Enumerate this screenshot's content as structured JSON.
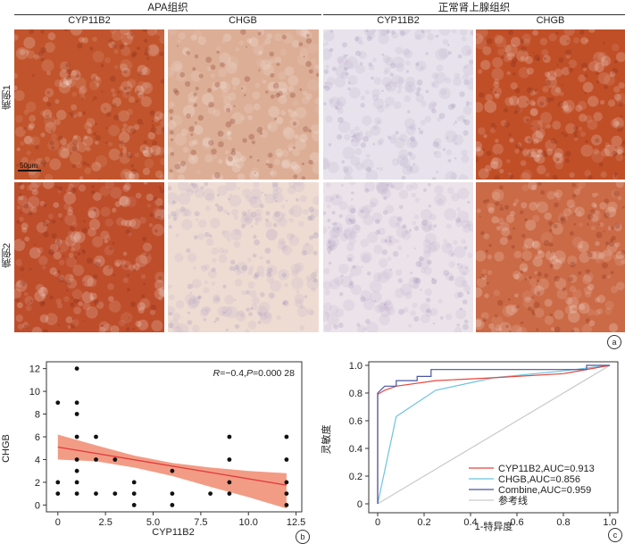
{
  "panel_a": {
    "group_headers": [
      "APA组织",
      "正常肾上腺组织"
    ],
    "stain_labels": [
      "CYP11B2",
      "CHGB",
      "CYP11B2",
      "CHGB"
    ],
    "row_labels": [
      "病例1",
      "病例2"
    ],
    "scale_bar": "50μm",
    "panel_label": "a",
    "tile_colors": [
      "#c1542c",
      "#dcae96",
      "#e7e2eb",
      "#c04f28",
      "#be4e2b",
      "#eedcd2",
      "#ebe3e9",
      "#cb6a46"
    ]
  },
  "panel_b": {
    "annotation": {
      "r_label": "R",
      "r_text": "=−0.4,",
      "p_label": "P",
      "p_text": "=0.000 28"
    },
    "panel_label": "b",
    "chart_data": {
      "type": "scatter",
      "xlabel": "CYP11B2",
      "ylabel": "CHGB",
      "xlim": [
        -0.6,
        12.8
      ],
      "ylim": [
        -0.6,
        12.6
      ],
      "xticks": [
        0,
        2.5,
        5.0,
        7.5,
        10.0,
        12.5
      ],
      "xtick_labels": [
        "0",
        "2.5",
        "5.0",
        "7.5",
        "10.0",
        "12.5"
      ],
      "yticks": [
        0,
        2,
        4,
        6,
        8,
        10,
        12
      ],
      "points": [
        [
          0,
          1
        ],
        [
          0,
          2
        ],
        [
          0,
          9
        ],
        [
          1,
          1
        ],
        [
          1,
          2
        ],
        [
          1,
          3
        ],
        [
          1,
          4
        ],
        [
          1,
          6
        ],
        [
          1,
          8
        ],
        [
          1,
          9
        ],
        [
          1,
          12
        ],
        [
          2,
          1
        ],
        [
          2,
          4
        ],
        [
          2,
          6
        ],
        [
          3,
          1
        ],
        [
          3,
          4
        ],
        [
          4,
          0
        ],
        [
          4,
          1
        ],
        [
          4,
          2
        ],
        [
          6,
          0
        ],
        [
          6,
          1
        ],
        [
          6,
          3
        ],
        [
          8,
          1
        ],
        [
          9,
          1
        ],
        [
          9,
          2
        ],
        [
          9,
          4
        ],
        [
          9,
          6
        ],
        [
          12,
          0
        ],
        [
          12,
          1
        ],
        [
          12,
          2
        ],
        [
          12,
          4
        ],
        [
          12,
          6
        ]
      ],
      "fit": {
        "x": [
          0,
          12
        ],
        "y": [
          5.1,
          1.75
        ]
      },
      "band_upper": [
        [
          0,
          6.2
        ],
        [
          2,
          5.25
        ],
        [
          4,
          4.35
        ],
        [
          6,
          3.7
        ],
        [
          8,
          3.3
        ],
        [
          10,
          3.0
        ],
        [
          12,
          2.8
        ]
      ],
      "band_lower": [
        [
          0,
          4.0
        ],
        [
          2,
          3.85
        ],
        [
          4,
          3.3
        ],
        [
          6,
          2.55
        ],
        [
          8,
          1.6
        ],
        [
          10,
          0.7
        ],
        [
          12,
          -0.3
        ]
      ],
      "colors": {
        "fit": "#e2393c",
        "band": "#f08b70",
        "points": "#111111"
      }
    }
  },
  "panel_c": {
    "panel_label": "c",
    "chart_data": {
      "type": "line",
      "xlabel": "1-特异度",
      "ylabel": "灵敏度",
      "xlim": [
        0,
        1
      ],
      "ylim": [
        0,
        1
      ],
      "xticks": [
        0,
        0.2,
        0.4,
        0.6,
        0.8,
        1.0
      ],
      "yticks": [
        0,
        0.2,
        0.4,
        0.6,
        0.8,
        1.0
      ],
      "tick_labels": [
        "0",
        "0.2",
        "0.4",
        "0.6",
        "0.8",
        "1.0"
      ],
      "series": [
        {
          "name": "CYP11B2,AUC=0.913",
          "color": "#e8453c",
          "x": [
            0,
            0,
            0.03,
            0.08,
            0.25,
            0.5,
            0.8,
            1.0
          ],
          "y": [
            0,
            0.79,
            0.82,
            0.85,
            0.89,
            0.91,
            0.94,
            1.0
          ]
        },
        {
          "name": "CHGB,AUC=0.856",
          "color": "#6cc3e0",
          "x": [
            0,
            0.08,
            0.25,
            0.5,
            0.8,
            1.0
          ],
          "y": [
            0,
            0.63,
            0.82,
            0.91,
            0.96,
            1.0
          ]
        },
        {
          "name": "Combine,AUC=0.959",
          "color": "#4a55a2",
          "x": [
            0,
            0,
            0.03,
            0.08,
            0.08,
            0.17,
            0.17,
            0.23,
            0.23,
            0.9,
            0.9,
            1.0
          ],
          "y": [
            0,
            0.8,
            0.85,
            0.85,
            0.89,
            0.89,
            0.92,
            0.92,
            0.97,
            0.97,
            1.0,
            1.0
          ]
        },
        {
          "name": "参考线",
          "color": "#c9c9c9",
          "x": [
            0,
            1
          ],
          "y": [
            0,
            1
          ]
        }
      ]
    }
  }
}
